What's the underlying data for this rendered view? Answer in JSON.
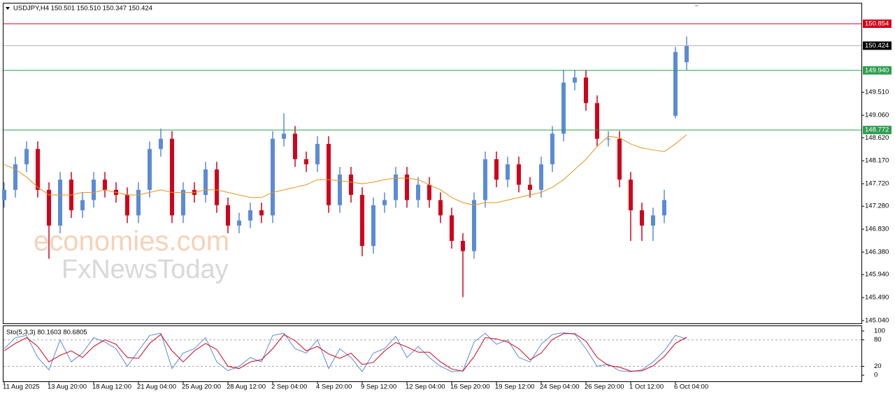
{
  "chart_data": {
    "type": "candlestick",
    "title": "USDJPY,H4  150.501 150.510 150.347 150.424",
    "watermark": [
      "economies.com",
      "FxNewsToday"
    ],
    "categories": [
      "11 Aug 2025",
      null,
      null,
      null,
      "13 Aug 20:00",
      null,
      null,
      null,
      "18 Aug 12:00",
      null,
      null,
      null,
      "21 Aug 04:00",
      null,
      null,
      null,
      "25 Aug 20:00",
      null,
      null,
      null,
      "28 Aug 12:00",
      null,
      null,
      null,
      "2 Sep 04:00",
      null,
      null,
      null,
      "4 Sep 20:00",
      null,
      null,
      null,
      "9 Sep 12:00",
      null,
      null,
      null,
      "12 Sep 04:00",
      null,
      null,
      null,
      "16 Sep 20:00",
      null,
      null,
      null,
      "19 Sep 12:00",
      null,
      null,
      null,
      "24 Sep 04:00",
      null,
      null,
      null,
      "26 Sep 20:00",
      null,
      null,
      null,
      "1 Oct 12:00",
      null,
      null,
      null,
      "6 Oct 04:00",
      null
    ],
    "open": [
      147.4,
      147.6,
      148.1,
      148.4,
      147.6,
      146.9,
      147.8,
      147.2,
      147.4,
      147.8,
      147.6,
      147.5,
      147.1,
      147.6,
      148.4,
      148.6,
      147.1,
      147.6,
      147.5,
      148.0,
      147.3,
      146.9,
      147.0,
      147.2,
      147.1,
      148.6,
      148.7,
      148.2,
      148.1,
      148.5,
      147.3,
      147.9,
      147.5,
      146.5,
      147.3,
      147.4,
      147.9,
      147.4,
      147.7,
      147.4,
      147.1,
      146.6,
      146.4,
      147.4,
      148.2,
      147.8,
      148.1,
      147.7,
      147.6,
      148.1,
      148.7,
      149.7,
      149.8,
      149.3,
      148.6,
      148.6,
      147.8,
      147.2,
      146.9,
      147.1,
      149.05,
      150.1
    ],
    "high": [
      147.75,
      148.25,
      148.55,
      148.55,
      147.75,
      147.95,
      147.95,
      147.55,
      147.95,
      147.95,
      147.75,
      147.65,
      147.75,
      148.55,
      148.8,
      148.75,
      147.75,
      147.75,
      148.15,
      148.15,
      147.45,
      147.15,
      147.35,
      147.35,
      148.75,
      149.1,
      148.85,
      148.35,
      148.65,
      148.65,
      148.05,
      148.05,
      147.65,
      147.45,
      147.55,
      148.05,
      148.05,
      147.85,
      147.85,
      147.55,
      147.25,
      146.75,
      147.55,
      148.35,
      148.35,
      148.25,
      148.25,
      147.85,
      148.25,
      148.85,
      149.95,
      149.95,
      149.95,
      149.45,
      148.75,
      148.75,
      147.95,
      147.35,
      147.25,
      147.6,
      150.4,
      150.6
    ],
    "low": [
      147.25,
      147.45,
      147.95,
      147.45,
      146.25,
      146.75,
      147.05,
      147.05,
      147.25,
      147.45,
      147.35,
      146.95,
      146.95,
      147.45,
      148.25,
      146.95,
      146.95,
      147.35,
      147.35,
      147.15,
      146.75,
      146.75,
      146.85,
      146.95,
      146.95,
      148.45,
      148.05,
      147.95,
      147.95,
      147.15,
      147.15,
      147.35,
      146.3,
      146.35,
      147.15,
      147.25,
      147.25,
      147.25,
      147.25,
      146.95,
      146.45,
      145.5,
      146.25,
      147.25,
      147.65,
      147.65,
      147.55,
      147.45,
      147.45,
      147.95,
      148.55,
      149.55,
      149.15,
      148.45,
      148.45,
      147.65,
      146.6,
      146.6,
      146.6,
      146.95,
      149.0,
      149.95
    ],
    "close": [
      147.6,
      148.1,
      148.4,
      147.6,
      146.9,
      147.8,
      147.2,
      147.4,
      147.8,
      147.6,
      147.5,
      147.1,
      147.6,
      148.4,
      148.6,
      147.1,
      147.6,
      147.5,
      148.0,
      147.3,
      146.9,
      147.0,
      147.2,
      147.1,
      148.6,
      148.7,
      148.2,
      148.1,
      148.5,
      147.3,
      147.9,
      147.5,
      146.5,
      147.3,
      147.4,
      147.9,
      147.4,
      147.7,
      147.4,
      147.1,
      146.6,
      146.4,
      147.4,
      148.2,
      147.8,
      148.1,
      147.7,
      147.6,
      148.1,
      148.7,
      149.7,
      149.8,
      149.3,
      148.6,
      148.6,
      147.8,
      147.2,
      146.9,
      147.1,
      147.4,
      150.3,
      150.424
    ],
    "up_color": "#5b8bd6",
    "down_color": "#d0021b",
    "ma": {
      "color": "#e0951c",
      "values": [
        148.1,
        148.0,
        147.85,
        147.65,
        147.5,
        147.5,
        147.5,
        147.55,
        147.55,
        147.6,
        147.55,
        147.5,
        147.5,
        147.55,
        147.6,
        147.55,
        147.55,
        147.55,
        147.6,
        147.6,
        147.55,
        147.5,
        147.45,
        147.45,
        147.55,
        147.6,
        147.65,
        147.7,
        147.8,
        147.8,
        147.78,
        147.75,
        147.72,
        147.75,
        147.8,
        147.83,
        147.83,
        147.8,
        147.7,
        147.6,
        147.45,
        147.35,
        147.3,
        147.35,
        147.35,
        147.4,
        147.45,
        147.5,
        147.55,
        147.65,
        147.8,
        148.0,
        148.2,
        148.45,
        148.65,
        148.62,
        148.5,
        148.42,
        148.38,
        148.35,
        148.5,
        148.68
      ]
    },
    "ylim": [
      144.985,
      151.25
    ],
    "yticks": [
      {
        "value": 145.04,
        "label": "145.040"
      },
      {
        "value": 145.49,
        "label": "145.490"
      },
      {
        "value": 145.94,
        "label": "145.940"
      },
      {
        "value": 146.38,
        "label": "146.380"
      },
      {
        "value": 146.83,
        "label": "146.830"
      },
      {
        "value": 147.28,
        "label": "147.280"
      },
      {
        "value": 147.72,
        "label": "147.720"
      },
      {
        "value": 148.17,
        "label": "148.170"
      },
      {
        "value": 148.62,
        "label": "148.620"
      },
      {
        "value": 149.06,
        "label": "149.060"
      },
      {
        "value": 149.51,
        "label": "149.510"
      }
    ],
    "levels": [
      {
        "value": 150.854,
        "color": "#d0021b",
        "label_bg": "#d0021b"
      },
      {
        "value": 150.424,
        "color": "#b0b0b0",
        "label_bg": "#000000"
      },
      {
        "value": 149.94,
        "label": "149.940",
        "color": "#2e9e4f",
        "label_bg": "#2e9e4f"
      },
      {
        "value": 148.772,
        "color": "#2e9e4f",
        "label_bg": "#2e9e4f"
      }
    ],
    "stochastic": {
      "label": "Sto(5,3,3) 80.1603 80.6805",
      "ylim": [
        -14,
        111
      ],
      "yticks": [
        100,
        80,
        20,
        0
      ],
      "levels": [
        80,
        20
      ],
      "series": [
        {
          "color": "#5b8bd6",
          "values": [
            60,
            85,
            90,
            40,
            12,
            80,
            30,
            50,
            85,
            75,
            60,
            20,
            55,
            90,
            95,
            15,
            50,
            60,
            85,
            30,
            10,
            20,
            40,
            30,
            90,
            95,
            60,
            50,
            80,
            15,
            60,
            40,
            8,
            50,
            60,
            88,
            40,
            65,
            40,
            20,
            8,
            10,
            75,
            95,
            70,
            80,
            40,
            30,
            70,
            92,
            96,
            93,
            60,
            20,
            25,
            10,
            8,
            12,
            30,
            55,
            90,
            82
          ]
        },
        {
          "color": "#d0021b",
          "values": [
            55,
            72,
            85,
            65,
            30,
            45,
            55,
            40,
            65,
            80,
            70,
            40,
            38,
            72,
            92,
            55,
            30,
            55,
            72,
            58,
            20,
            15,
            30,
            35,
            60,
            92,
            78,
            55,
            65,
            48,
            38,
            50,
            24,
            29,
            55,
            74,
            64,
            52,
            52,
            30,
            14,
            9,
            42,
            85,
            82,
            75,
            60,
            35,
            50,
            81,
            94,
            94,
            77,
            40,
            22,
            18,
            9,
            10,
            21,
            42,
            72,
            86
          ]
        }
      ]
    }
  }
}
